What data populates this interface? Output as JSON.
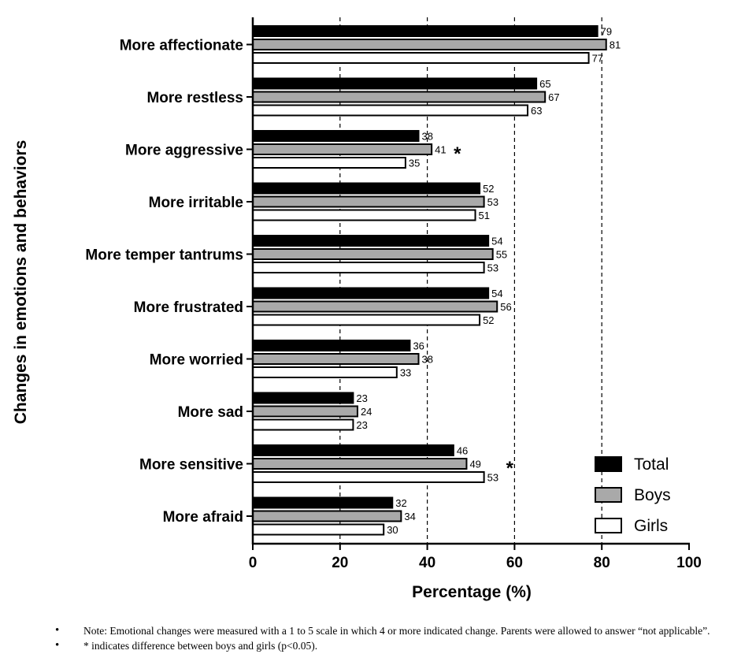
{
  "chart_data": {
    "type": "bar",
    "orientation": "horizontal",
    "categories": [
      "More affectionate",
      "More restless",
      "More aggressive",
      "More irritable",
      "More temper tantrums",
      "More frustrated",
      "More worried",
      "More sad",
      "More sensitive",
      "More afraid"
    ],
    "series": [
      {
        "name": "Total",
        "values": [
          79,
          65,
          38,
          52,
          54,
          54,
          36,
          23,
          46,
          32
        ],
        "color": "#000000"
      },
      {
        "name": "Boys",
        "values": [
          81,
          67,
          41,
          53,
          55,
          56,
          38,
          24,
          49,
          34
        ],
        "color": "#a9a9a9"
      },
      {
        "name": "Girls",
        "values": [
          77,
          63,
          35,
          51,
          53,
          52,
          33,
          23,
          53,
          30
        ],
        "color": "#ffffff"
      }
    ],
    "xlabel": "Percentage (%)",
    "ylabel": "Changes in emotions and behaviors",
    "xlim": [
      0,
      100
    ],
    "xticks": [
      "0",
      "20",
      "40",
      "60",
      "80",
      "100"
    ],
    "gridlines": [
      20,
      40,
      60,
      80
    ],
    "gridline_style": "dashed",
    "legend_position": "bottom-right",
    "annotations": [
      {
        "text": "*",
        "category": "More aggressive"
      },
      {
        "text": "*",
        "category": "More sensitive"
      }
    ]
  },
  "notes": [
    "Note: Emotional changes were measured with a 1 to 5 scale in which 4 or more indicated change. Parents were allowed to answer “not applicable”.",
    "* indicates difference between boys and girls (p<0.05)."
  ],
  "bullet_char": "•"
}
